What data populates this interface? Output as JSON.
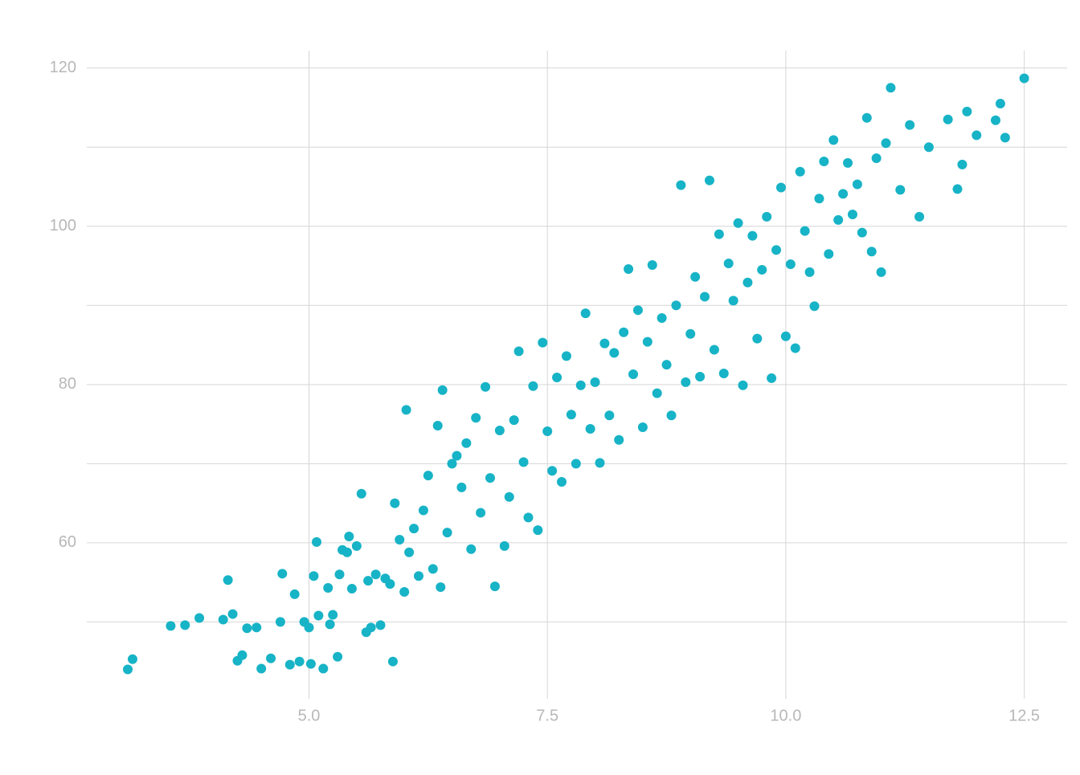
{
  "chart_data": {
    "type": "scatter",
    "color": "#17b3c6",
    "grid": true,
    "xlim": [
      2.67,
      12.95
    ],
    "ylim": [
      40.3,
      122.2
    ],
    "xticks": [
      {
        "value": 5,
        "label": "5.0"
      },
      7.5,
      {
        "value": 10,
        "label": "10.0"
      },
      12.5
    ],
    "yticks": [
      60,
      80,
      100,
      120
    ],
    "yminor": [
      50,
      70,
      90,
      110
    ],
    "x": [
      3.1,
      3.15,
      3.55,
      3.7,
      3.85,
      4.1,
      4.15,
      4.2,
      4.25,
      4.3,
      4.35,
      4.45,
      4.5,
      4.6,
      4.7,
      4.72,
      4.8,
      4.85,
      4.9,
      4.95,
      5.0,
      5.02,
      5.05,
      5.08,
      5.1,
      5.15,
      5.2,
      5.22,
      5.25,
      5.3,
      5.32,
      5.35,
      5.4,
      5.42,
      5.45,
      5.5,
      5.55,
      5.6,
      5.62,
      5.65,
      5.7,
      5.75,
      5.8,
      5.85,
      5.88,
      5.9,
      5.95,
      6.0,
      6.02,
      6.05,
      6.1,
      6.15,
      6.2,
      6.25,
      6.3,
      6.35,
      6.38,
      6.4,
      6.45,
      6.5,
      6.55,
      6.6,
      6.65,
      6.7,
      6.75,
      6.8,
      6.85,
      6.9,
      6.95,
      7.0,
      7.05,
      7.1,
      7.15,
      7.2,
      7.25,
      7.3,
      7.35,
      7.4,
      7.45,
      7.5,
      7.55,
      7.6,
      7.65,
      7.7,
      7.75,
      7.8,
      7.85,
      7.9,
      7.95,
      8.0,
      8.05,
      8.1,
      8.15,
      8.2,
      8.25,
      8.3,
      8.35,
      8.4,
      8.45,
      8.5,
      8.55,
      8.6,
      8.65,
      8.7,
      8.75,
      8.8,
      8.85,
      8.9,
      8.95,
      9.0,
      9.05,
      9.1,
      9.15,
      9.2,
      9.25,
      9.3,
      9.35,
      9.4,
      9.45,
      9.5,
      9.55,
      9.6,
      9.65,
      9.7,
      9.75,
      9.8,
      9.85,
      9.9,
      9.95,
      10.0,
      10.05,
      10.1,
      10.15,
      10.2,
      10.25,
      10.3,
      10.35,
      10.4,
      10.45,
      10.5,
      10.55,
      10.6,
      10.65,
      10.7,
      10.75,
      10.8,
      10.85,
      10.9,
      10.95,
      11.0,
      11.05,
      11.1,
      11.2,
      11.3,
      11.4,
      11.5,
      11.7,
      11.8,
      11.85,
      11.9,
      12.0,
      12.2,
      12.25,
      12.3,
      12.5
    ],
    "values": [
      44,
      45.3,
      49.5,
      49.6,
      50.5,
      50.3,
      55.3,
      51,
      45.1,
      45.8,
      49.2,
      49.3,
      44.1,
      45.4,
      50,
      56.1,
      44.6,
      53.5,
      45,
      50,
      49.3,
      44.7,
      55.8,
      60.1,
      50.8,
      44.1,
      54.3,
      49.7,
      50.9,
      45.6,
      56,
      59.1,
      58.8,
      60.8,
      54.2,
      59.6,
      66.2,
      48.7,
      55.2,
      49.3,
      56,
      49.6,
      55.5,
      54.8,
      45,
      65,
      60.4,
      53.8,
      76.8,
      58.8,
      61.8,
      55.8,
      64.1,
      68.5,
      56.7,
      74.8,
      54.4,
      79.3,
      61.3,
      70,
      71,
      67,
      72.6,
      59.2,
      75.8,
      63.8,
      79.7,
      68.2,
      54.5,
      74.2,
      59.6,
      65.8,
      75.5,
      84.2,
      70.2,
      63.2,
      79.8,
      61.6,
      85.3,
      74.1,
      69.1,
      80.9,
      67.7,
      83.6,
      76.2,
      70,
      79.9,
      89,
      74.4,
      80.3,
      70.1,
      85.2,
      76.1,
      84,
      73,
      86.6,
      94.6,
      81.3,
      89.4,
      74.6,
      85.4,
      95.1,
      78.9,
      88.4,
      82.5,
      76.1,
      90,
      105.2,
      80.3,
      86.4,
      93.6,
      81,
      91.1,
      105.8,
      84.4,
      99,
      81.4,
      95.3,
      90.6,
      100.4,
      79.9,
      92.9,
      98.8,
      85.8,
      94.5,
      101.2,
      80.8,
      97,
      104.9,
      86.1,
      95.2,
      84.6,
      106.9,
      99.4,
      94.2,
      89.9,
      103.5,
      108.2,
      96.5,
      110.9,
      100.8,
      104.1,
      108,
      101.5,
      105.3,
      99.2,
      113.7,
      96.8,
      108.6,
      94.2,
      110.5,
      117.5,
      104.6,
      112.8,
      101.2,
      110,
      113.5,
      104.7,
      107.8,
      114.5,
      111.5,
      113.4,
      115.5,
      111.2,
      118.7
    ]
  }
}
